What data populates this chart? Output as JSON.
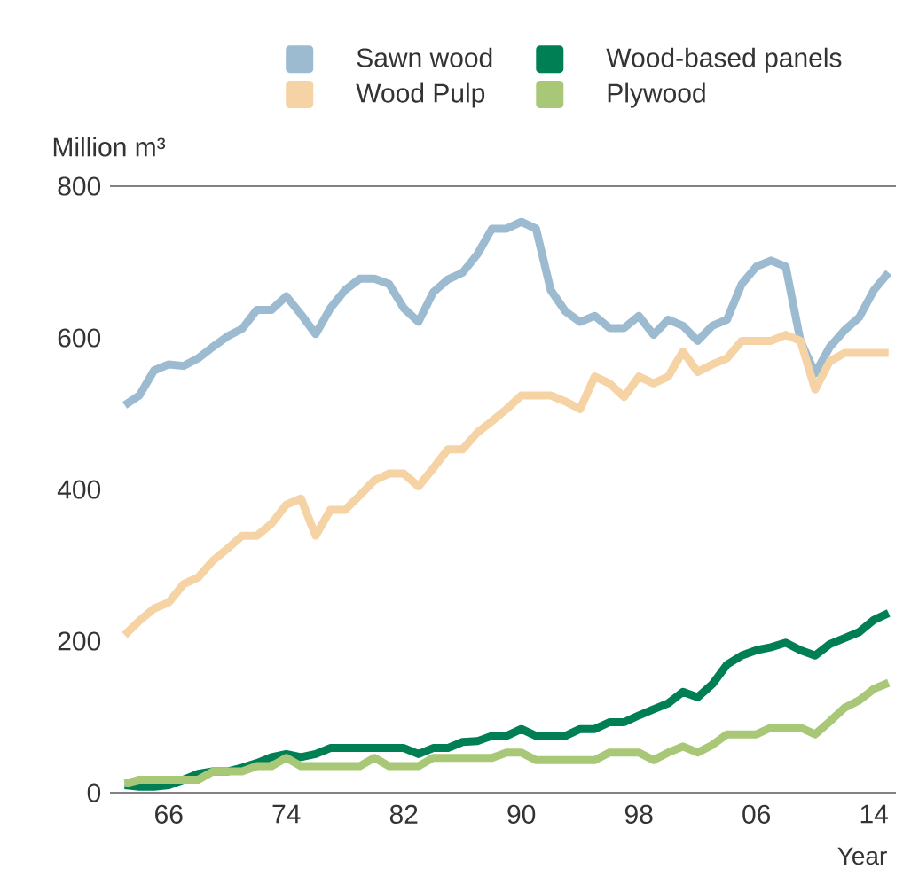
{
  "chart_data": {
    "type": "line",
    "xlabel": "Year",
    "ylabel": "Million m³",
    "x": [
      1963,
      1964,
      1965,
      1966,
      1967,
      1968,
      1969,
      1970,
      1971,
      1972,
      1973,
      1974,
      1975,
      1976,
      1977,
      1978,
      1979,
      1980,
      1981,
      1982,
      1983,
      1984,
      1985,
      1986,
      1987,
      1988,
      1989,
      1990,
      1991,
      1992,
      1993,
      1994,
      1995,
      1996,
      1997,
      1998,
      1999,
      2000,
      2001,
      2002,
      2003,
      2004,
      2005,
      2006,
      2007,
      2008,
      2009,
      2010,
      2011,
      2012,
      2013,
      2014,
      2015
    ],
    "series": [
      {
        "name": "Sawn wood",
        "color": "#9dbbd0",
        "values": [
          511,
          524,
          557,
          565,
          563,
          573,
          588,
          602,
          612,
          637,
          637,
          655,
          631,
          605,
          639,
          663,
          678,
          678,
          671,
          639,
          621,
          660,
          677,
          686,
          710,
          744,
          744,
          753,
          744,
          663,
          635,
          621,
          629,
          613,
          613,
          629,
          604,
          624,
          616,
          596,
          616,
          624,
          671,
          694,
          702,
          694,
          596,
          553,
          588,
          610,
          627,
          663,
          686
        ]
      },
      {
        "name": "Wood-based panels",
        "color": "#007f55",
        "values": [
          10,
          8,
          8,
          10,
          17,
          25,
          28,
          28,
          33,
          39,
          47,
          51,
          47,
          51,
          59,
          59,
          59,
          59,
          59,
          59,
          51,
          59,
          59,
          67,
          68,
          75,
          75,
          84,
          75,
          75,
          75,
          84,
          84,
          93,
          93,
          102,
          110,
          118,
          133,
          126,
          143,
          169,
          181,
          188,
          192,
          198,
          188,
          181,
          196,
          204,
          212,
          228,
          237
        ]
      },
      {
        "name": "Wood Pulp",
        "color": "#f5d3a5",
        "values": [
          208,
          227,
          243,
          251,
          275,
          284,
          306,
          322,
          339,
          339,
          355,
          380,
          388,
          339,
          373,
          373,
          392,
          412,
          421,
          421,
          404,
          428,
          453,
          453,
          475,
          490,
          506,
          524,
          524,
          524,
          516,
          506,
          549,
          540,
          522,
          549,
          540,
          549,
          582,
          555,
          565,
          573,
          596,
          596,
          596,
          604,
          596,
          532,
          569,
          580,
          580,
          580,
          580
        ]
      },
      {
        "name": "Plywood",
        "color": "#a8c878",
        "values": [
          12,
          17,
          17,
          17,
          17,
          17,
          28,
          28,
          28,
          35,
          35,
          46,
          35,
          35,
          35,
          35,
          35,
          46,
          35,
          35,
          35,
          46,
          46,
          46,
          46,
          46,
          53,
          53,
          43,
          43,
          43,
          43,
          43,
          53,
          53,
          53,
          43,
          53,
          61,
          53,
          63,
          77,
          77,
          77,
          86,
          86,
          86,
          77,
          94,
          112,
          122,
          137,
          145
        ]
      }
    ],
    "xlim": [
      1962,
      2015.5
    ],
    "ylim": [
      0,
      800
    ],
    "xticks": [
      {
        "value": 1966,
        "label": "66"
      },
      {
        "value": 1974,
        "label": "74"
      },
      {
        "value": 1982,
        "label": "82"
      },
      {
        "value": 1990,
        "label": "90"
      },
      {
        "value": 1998,
        "label": "98"
      },
      {
        "value": 2006,
        "label": "06"
      },
      {
        "value": 2014,
        "label": "14"
      }
    ],
    "yticks": [
      0,
      200,
      400,
      600,
      800
    ],
    "legend": "top",
    "marker": "none",
    "line_style": "solid"
  }
}
